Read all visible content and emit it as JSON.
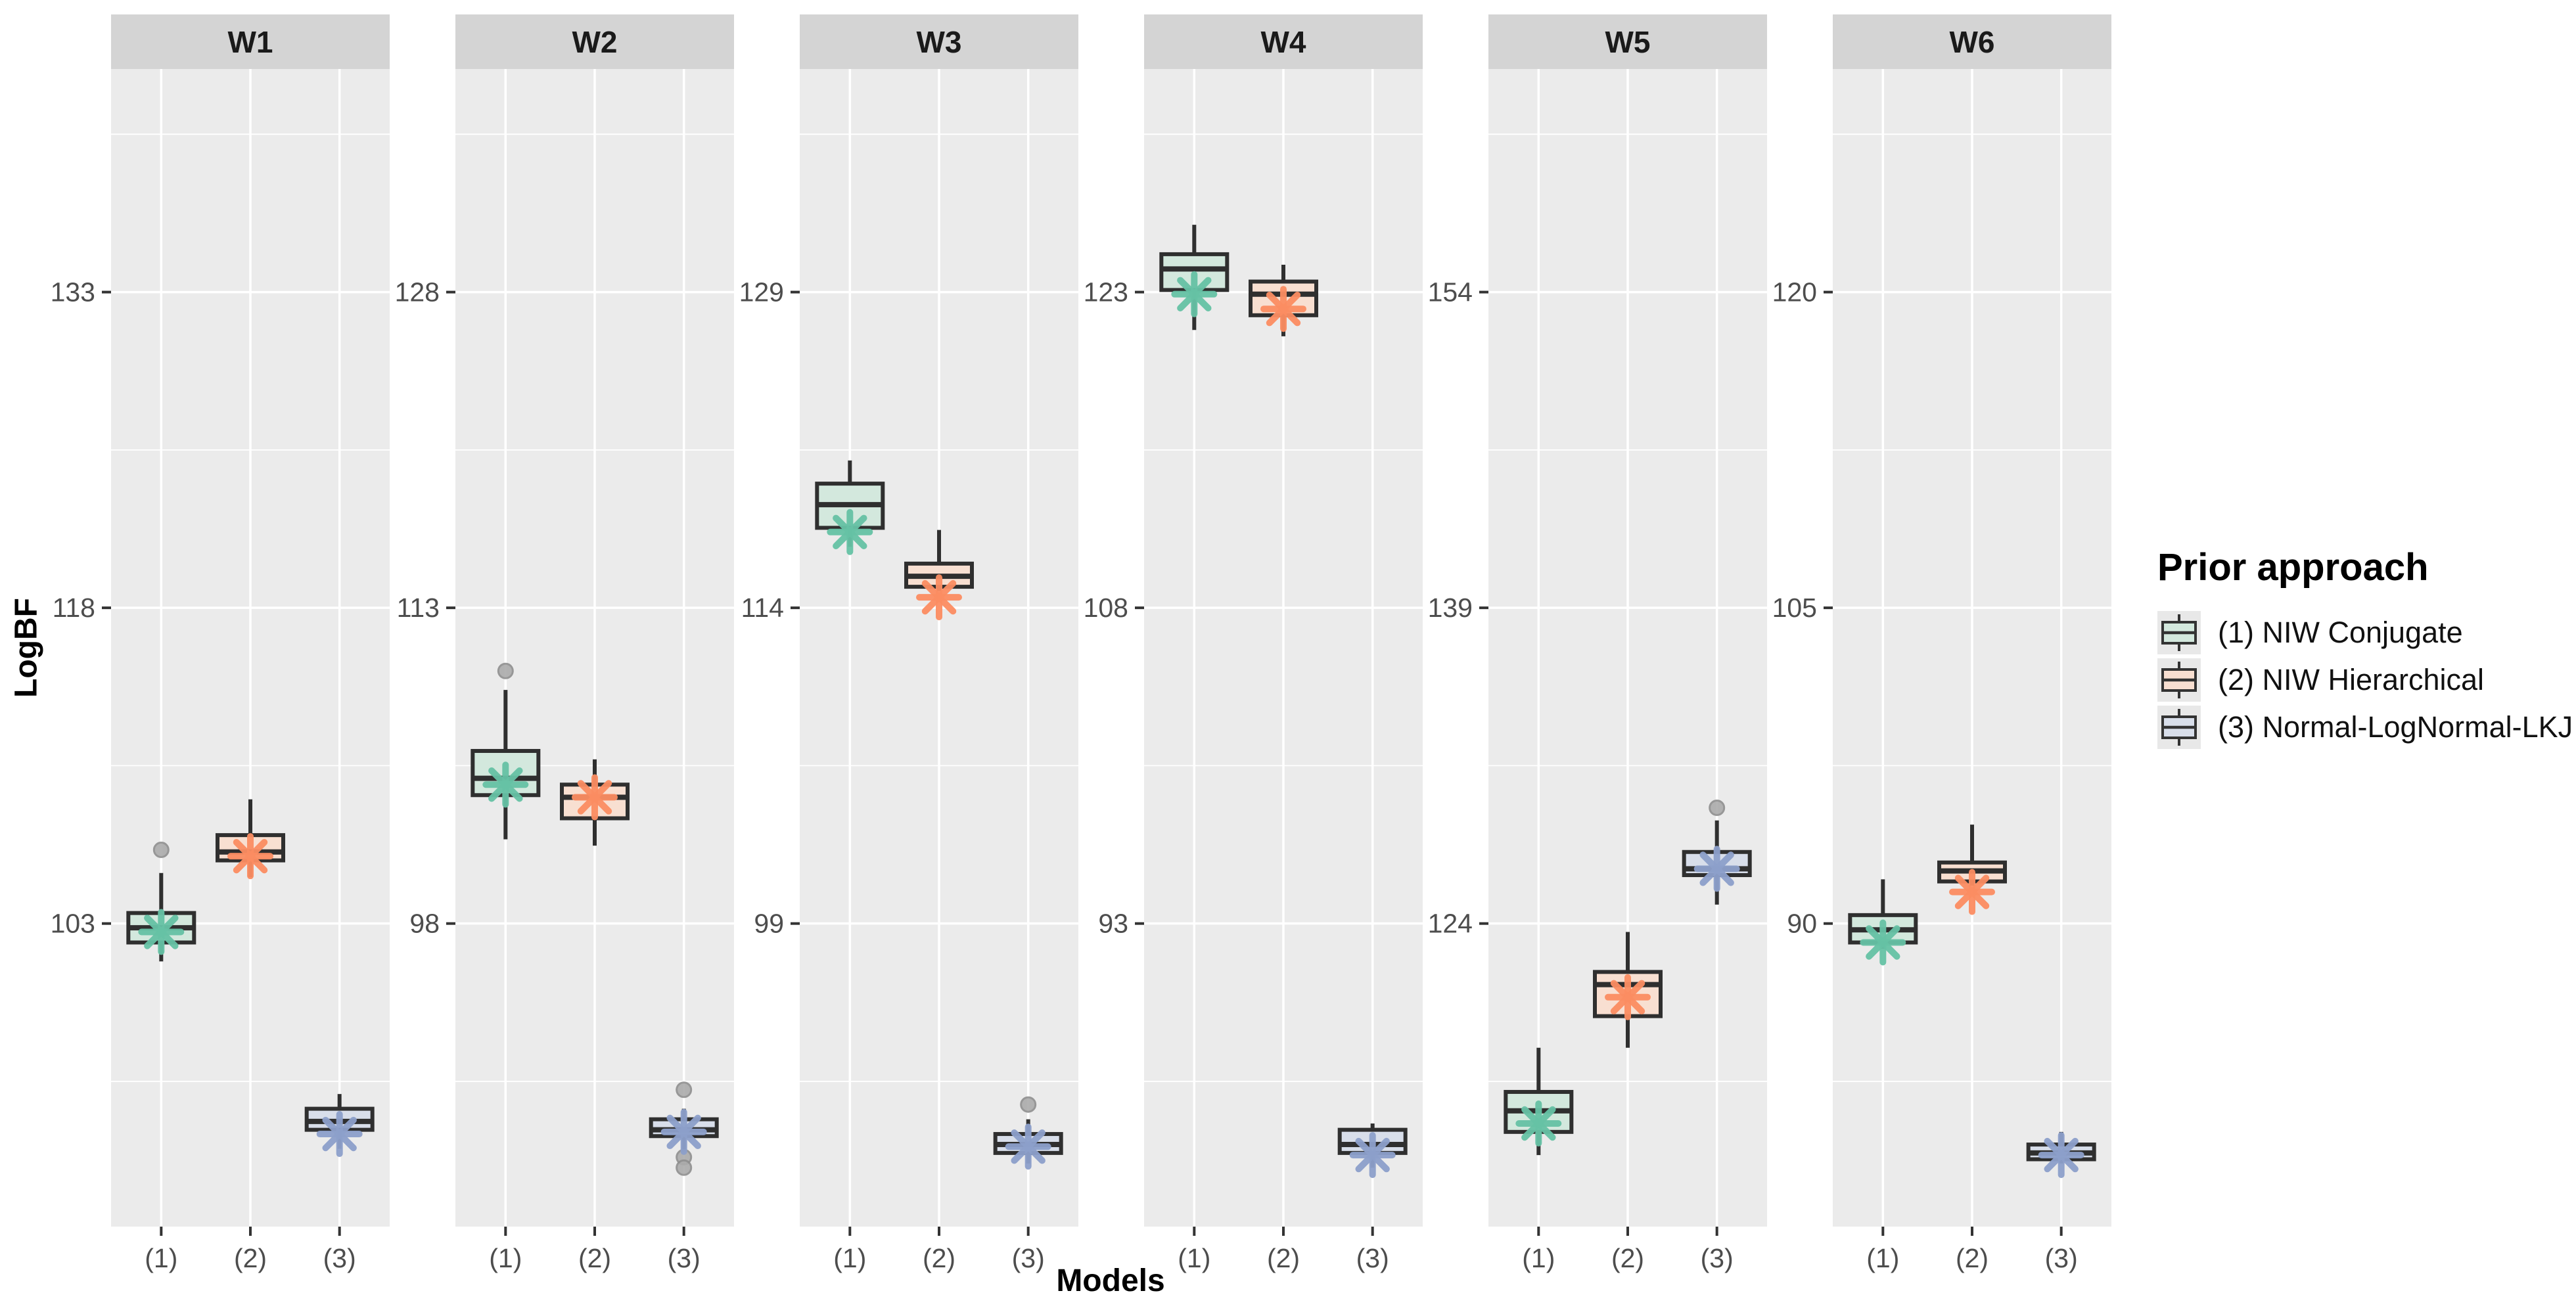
{
  "axes": {
    "y_title": "LogBF",
    "x_title": "Models"
  },
  "legend": {
    "title": "Prior approach",
    "items": [
      {
        "label": "(1) NIW Conjugate"
      },
      {
        "label": "(2) NIW Hierarchical"
      },
      {
        "label": "(3) Normal-LogNormal-LKJ"
      }
    ]
  },
  "chart_data": {
    "type": "boxplot",
    "xlabel": "Models",
    "ylabel": "LogBF",
    "categories": [
      "(1)",
      "(2)",
      "(3)"
    ],
    "legend_title": "Prior approach",
    "legend_position": "right",
    "grid": "white major and minor horizontal gridlines, white vertical gridline per category, gray panel background",
    "style": {
      "panel_bg": "#EBEBEB",
      "strip_bg": "#D4D4D4",
      "grid_color": "#FFFFFF",
      "box_border": "#2F2F2F",
      "tick_text": "#4D4D4D",
      "outlier_fill": "#ABABAB",
      "outlier_stroke": "#8F8F8F",
      "models": [
        {
          "key": "(1)",
          "name": "(1) NIW Conjugate",
          "fill": "#D3E8DD",
          "accent": "#66C2A5"
        },
        {
          "key": "(2)",
          "name": "(2) NIW Hierarchical",
          "fill": "#F8DFD1",
          "accent": "#FC8D62"
        },
        {
          "key": "(3)",
          "name": "(3) Normal-LogNormal-LKJ",
          "fill": "#D8DEEA",
          "accent": "#8DA0CB"
        }
      ]
    },
    "facets": [
      {
        "label": "W1",
        "yticks": [
          133,
          118,
          103
        ],
        "ylim": [
          88.6,
          143.6
        ],
        "boxes": [
          {
            "model": "(1)",
            "whisker_low": 101.2,
            "q1": 102.1,
            "median": 102.8,
            "q3": 103.5,
            "whisker_high": 105.4,
            "star": 102.6,
            "outliers": [
              106.5
            ]
          },
          {
            "model": "(2)",
            "whisker_low": 105.2,
            "q1": 106.0,
            "median": 106.4,
            "q3": 107.2,
            "whisker_high": 108.9,
            "star": 106.2,
            "outliers": []
          },
          {
            "model": "(3)",
            "whisker_low": 92.3,
            "q1": 93.2,
            "median": 93.6,
            "q3": 94.2,
            "whisker_high": 94.9,
            "star": 93.0,
            "outliers": []
          }
        ]
      },
      {
        "label": "W2",
        "yticks": [
          128,
          113,
          98
        ],
        "ylim": [
          83.6,
          138.6
        ],
        "boxes": [
          {
            "model": "(1)",
            "whisker_low": 102.0,
            "q1": 104.1,
            "median": 104.9,
            "q3": 106.2,
            "whisker_high": 109.1,
            "star": 104.6,
            "outliers": [
              110.0
            ]
          },
          {
            "model": "(2)",
            "whisker_low": 101.7,
            "q1": 103.0,
            "median": 104.0,
            "q3": 104.6,
            "whisker_high": 105.8,
            "star": 104.0,
            "outliers": []
          },
          {
            "model": "(3)",
            "whisker_low": 87.1,
            "q1": 87.9,
            "median": 88.2,
            "q3": 88.7,
            "whisker_high": 89.2,
            "star": 88.1,
            "outliers": [
              90.1,
              86.9,
              86.4
            ]
          }
        ]
      },
      {
        "label": "W3",
        "yticks": [
          129,
          114,
          99
        ],
        "ylim": [
          84.6,
          139.6
        ],
        "boxes": [
          {
            "model": "(1)",
            "whisker_low": 116.9,
            "q1": 117.8,
            "median": 118.9,
            "q3": 119.9,
            "whisker_high": 121.0,
            "star": 117.6,
            "outliers": []
          },
          {
            "model": "(2)",
            "whisker_low": 114.8,
            "q1": 115.0,
            "median": 115.5,
            "q3": 116.1,
            "whisker_high": 117.7,
            "star": 114.5,
            "outliers": []
          },
          {
            "model": "(3)",
            "whisker_low": 87.6,
            "q1": 88.1,
            "median": 88.5,
            "q3": 89.0,
            "whisker_high": 89.7,
            "star": 88.4,
            "outliers": [
              90.4
            ]
          }
        ]
      },
      {
        "label": "W4",
        "yticks": [
          123,
          108,
          93
        ],
        "ylim": [
          78.6,
          133.6
        ],
        "boxes": [
          {
            "model": "(1)",
            "whisker_low": 121.2,
            "q1": 123.1,
            "median": 124.1,
            "q3": 124.8,
            "whisker_high": 126.2,
            "star": 122.9,
            "outliers": []
          },
          {
            "model": "(2)",
            "whisker_low": 120.9,
            "q1": 121.9,
            "median": 122.9,
            "q3": 123.5,
            "whisker_high": 124.3,
            "star": 122.2,
            "outliers": []
          },
          {
            "model": "(3)",
            "whisker_low": 81.4,
            "q1": 82.1,
            "median": 82.5,
            "q3": 83.2,
            "whisker_high": 83.5,
            "star": 82.0,
            "outliers": []
          }
        ]
      },
      {
        "label": "W5",
        "yticks": [
          154,
          139,
          124
        ],
        "ylim": [
          109.6,
          164.6
        ],
        "boxes": [
          {
            "model": "(1)",
            "whisker_low": 113.0,
            "q1": 114.1,
            "median": 115.1,
            "q3": 116.0,
            "whisker_high": 118.1,
            "star": 114.5,
            "outliers": []
          },
          {
            "model": "(2)",
            "whisker_low": 118.1,
            "q1": 119.6,
            "median": 121.1,
            "q3": 121.7,
            "whisker_high": 123.6,
            "star": 120.5,
            "outliers": []
          },
          {
            "model": "(3)",
            "whisker_low": 124.9,
            "q1": 126.3,
            "median": 126.6,
            "q3": 127.4,
            "whisker_high": 128.9,
            "star": 126.6,
            "outliers": [
              129.5
            ]
          }
        ]
      },
      {
        "label": "W6",
        "yticks": [
          120,
          105,
          90
        ],
        "ylim": [
          75.6,
          130.6
        ],
        "boxes": [
          {
            "model": "(1)",
            "whisker_low": 88.8,
            "q1": 89.1,
            "median": 89.7,
            "q3": 90.4,
            "whisker_high": 92.1,
            "star": 89.1,
            "outliers": []
          },
          {
            "model": "(2)",
            "whisker_low": 91.8,
            "q1": 92.0,
            "median": 92.5,
            "q3": 92.9,
            "whisker_high": 94.7,
            "star": 91.5,
            "outliers": []
          },
          {
            "model": "(3)",
            "whisker_low": 78.6,
            "q1": 78.8,
            "median": 79.1,
            "q3": 79.5,
            "whisker_high": 80.1,
            "star": 79.0,
            "outliers": []
          }
        ]
      }
    ]
  }
}
